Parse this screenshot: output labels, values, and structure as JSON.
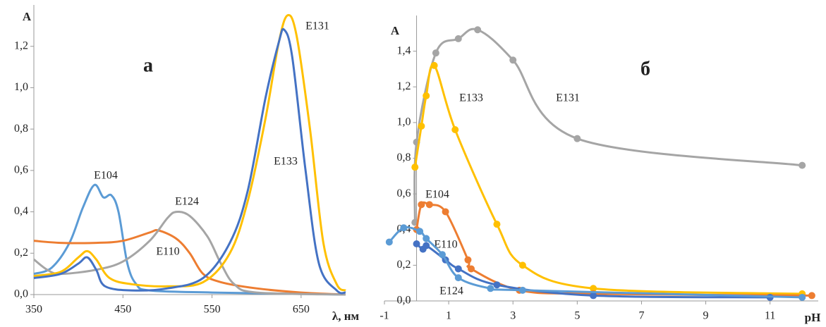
{
  "chart_data": [
    {
      "type": "line",
      "title": "а",
      "ylabel": "A",
      "xlabel": "λ, нм",
      "markers": false,
      "xlim": [
        350,
        700
      ],
      "xticks": [
        350,
        450,
        550,
        650
      ],
      "ylim": [
        0,
        1.4
      ],
      "yticks": [
        {
          "value": 0,
          "label": "0,0"
        },
        {
          "value": 0.2,
          "label": "0,2"
        },
        {
          "value": 0.4,
          "label": "0,4"
        },
        {
          "value": 0.6,
          "label": "0,6"
        },
        {
          "value": 0.8,
          "label": "0,8"
        },
        {
          "value": 1.0,
          "label": "1,0"
        },
        {
          "value": 1.2,
          "label": "1,2"
        }
      ],
      "series": [
        {
          "name": "E104",
          "color": "#5b9bd5",
          "x": [
            350,
            370,
            390,
            405,
            418,
            428,
            437,
            445,
            455,
            465,
            480,
            550,
            700
          ],
          "values": [
            0.1,
            0.13,
            0.25,
            0.42,
            0.53,
            0.47,
            0.48,
            0.4,
            0.15,
            0.05,
            0.02,
            0.01,
            0.0
          ]
        },
        {
          "name": "E110",
          "color": "#ed7d31",
          "x": [
            350,
            380,
            420,
            450,
            480,
            490,
            510,
            525,
            540,
            560,
            600,
            650,
            700
          ],
          "values": [
            0.26,
            0.25,
            0.25,
            0.26,
            0.3,
            0.31,
            0.27,
            0.2,
            0.1,
            0.06,
            0.03,
            0.01,
            0.0
          ]
        },
        {
          "name": "E124",
          "color": "#a5a5a5",
          "x": [
            350,
            365,
            380,
            420,
            450,
            480,
            500,
            510,
            525,
            545,
            560,
            575,
            600,
            700
          ],
          "values": [
            0.17,
            0.12,
            0.1,
            0.12,
            0.16,
            0.26,
            0.37,
            0.4,
            0.38,
            0.28,
            0.15,
            0.05,
            0.01,
            0.0
          ]
        },
        {
          "name": "E131",
          "color": "#ffc000",
          "x": [
            350,
            380,
            400,
            410,
            420,
            435,
            460,
            500,
            540,
            570,
            590,
            610,
            625,
            635,
            645,
            660,
            675,
            690,
            700
          ],
          "values": [
            0.09,
            0.11,
            0.18,
            0.21,
            0.17,
            0.08,
            0.05,
            0.04,
            0.06,
            0.2,
            0.45,
            0.85,
            1.22,
            1.35,
            1.25,
            0.8,
            0.25,
            0.05,
            0.02
          ]
        },
        {
          "name": "E133",
          "color": "#4472c4",
          "x": [
            350,
            380,
            400,
            410,
            420,
            430,
            460,
            500,
            540,
            570,
            590,
            610,
            625,
            631,
            640,
            655,
            670,
            690,
            700
          ],
          "values": [
            0.08,
            0.1,
            0.15,
            0.18,
            0.12,
            0.04,
            0.02,
            0.03,
            0.08,
            0.25,
            0.5,
            0.95,
            1.22,
            1.28,
            1.15,
            0.6,
            0.15,
            0.02,
            0.01
          ]
        }
      ]
    },
    {
      "type": "line",
      "title": "б",
      "ylabel": "A",
      "xlabel": "pH",
      "markers": true,
      "xlim": [
        -1,
        12.5
      ],
      "xticks": [
        -1,
        1,
        3,
        5,
        7,
        9,
        11
      ],
      "ylim": [
        0,
        1.6
      ],
      "yticks": [
        {
          "value": 0,
          "label": "0,0"
        },
        {
          "value": 0.2,
          "label": "0,2"
        },
        {
          "value": 0.4,
          "label": "0,4"
        },
        {
          "value": 0.6,
          "label": "0,6"
        },
        {
          "value": 0.8,
          "label": "0,8"
        },
        {
          "value": 1.0,
          "label": "1,0"
        },
        {
          "value": 1.2,
          "label": "1,2"
        },
        {
          "value": 1.4,
          "label": "1,4"
        }
      ],
      "series": [
        {
          "name": "E131",
          "color": "#a5a5a5",
          "x": [
            -0.05,
            0,
            0.6,
            1.3,
            1.9,
            3,
            5,
            12
          ],
          "values": [
            0.44,
            0.89,
            1.39,
            1.47,
            1.52,
            1.35,
            0.91,
            0.76
          ]
        },
        {
          "name": "E133",
          "color": "#ffc000",
          "x": [
            -0.05,
            0.15,
            0.3,
            0.55,
            1.2,
            2.5,
            3.3,
            5.5,
            12
          ],
          "values": [
            0.75,
            0.98,
            1.15,
            1.32,
            0.96,
            0.43,
            0.2,
            0.07,
            0.04
          ]
        },
        {
          "name": "E104",
          "color": "#ed7d31",
          "x": [
            0,
            0.15,
            0.4,
            0.9,
            1.6,
            1.7,
            3.2,
            5.5,
            12.3
          ],
          "values": [
            0.4,
            0.54,
            0.54,
            0.5,
            0.23,
            0.18,
            0.06,
            0.04,
            0.03
          ]
        },
        {
          "name": "E110",
          "color": "#4472c4",
          "x": [
            0,
            0.2,
            0.3,
            0.9,
            1.3,
            2.5,
            5.5,
            11
          ],
          "values": [
            0.32,
            0.29,
            0.31,
            0.23,
            0.18,
            0.09,
            0.03,
            0.02
          ]
        },
        {
          "name": "E124",
          "color": "#5b9bd5",
          "x": [
            -0.85,
            -0.4,
            0.1,
            0.3,
            0.8,
            1.3,
            2.3,
            3.3,
            12
          ],
          "values": [
            0.33,
            0.41,
            0.39,
            0.35,
            0.26,
            0.13,
            0.07,
            0.06,
            0.02
          ]
        }
      ]
    }
  ]
}
